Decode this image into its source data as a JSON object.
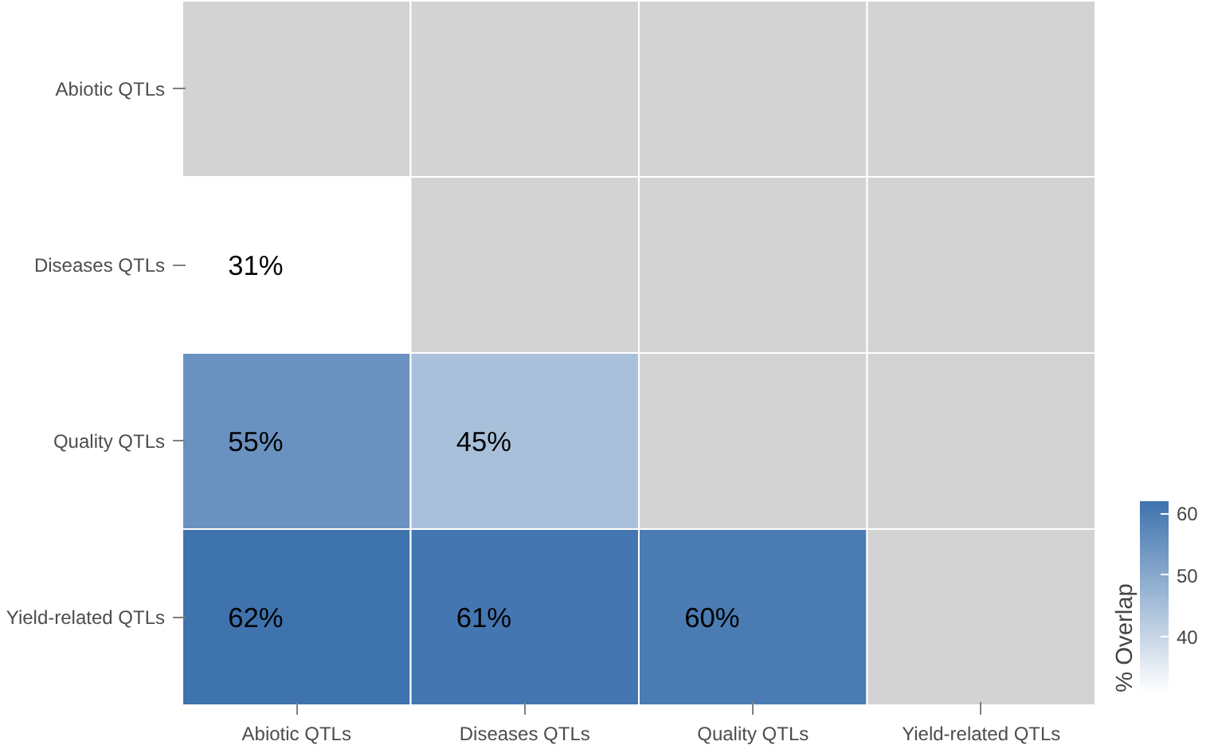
{
  "chart_data": {
    "type": "heatmap",
    "clabel": "% Overlap",
    "categories": [
      "Abiotic QTLs",
      "Diseases QTLs",
      "Quality QTLs",
      "Yield-related QTLs"
    ],
    "y_categories": [
      "Abiotic QTLs",
      "Diseases QTLs",
      "Quality QTLs",
      "Yield-related QTLs"
    ],
    "cells": [
      [
        null,
        null,
        null,
        null
      ],
      [
        31,
        null,
        null,
        null
      ],
      [
        55,
        45,
        null,
        null
      ],
      [
        62,
        61,
        60,
        null
      ]
    ],
    "cell_labels": [
      [
        null,
        null,
        null,
        null
      ],
      [
        "31%",
        null,
        null,
        null
      ],
      [
        "55%",
        "45%",
        null,
        null
      ],
      [
        "62%",
        "61%",
        "60%",
        null
      ]
    ],
    "clim": [
      31,
      62
    ],
    "cticks": [
      40,
      50,
      60
    ]
  }
}
